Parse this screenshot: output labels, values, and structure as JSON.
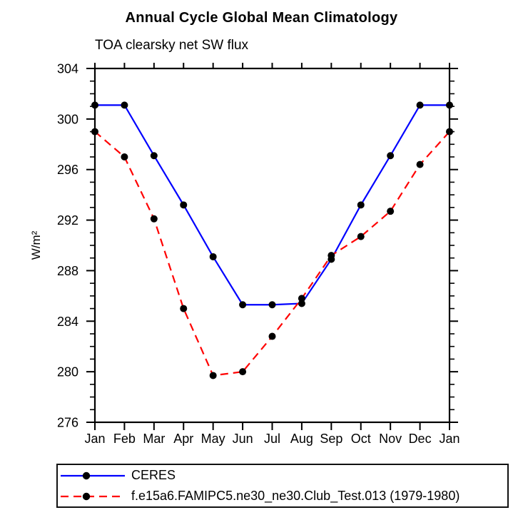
{
  "chart_data": {
    "type": "line",
    "title": "Annual Cycle Global Mean Climatology",
    "subtitle": "TOA clearsky net SW flux",
    "ylabel": "W/m²",
    "categories": [
      "Jan",
      "Feb",
      "Mar",
      "Apr",
      "May",
      "Jun",
      "Jul",
      "Aug",
      "Sep",
      "Oct",
      "Nov",
      "Dec",
      "Jan"
    ],
    "ylim": [
      276,
      304
    ],
    "yticks": [
      276,
      280,
      284,
      288,
      292,
      296,
      300,
      304
    ],
    "ytick_minor_step": 1,
    "grid": false,
    "legend_position": "bottom-left-box",
    "marker_color": "#000000",
    "axis_color": "#000000",
    "series": [
      {
        "name": "CERES",
        "color": "#0000ff",
        "style": "solid",
        "dash": "none",
        "values": [
          301.1,
          301.1,
          297.1,
          293.2,
          289.1,
          285.3,
          285.3,
          285.4,
          288.9,
          293.2,
          297.1,
          301.1,
          301.1
        ]
      },
      {
        "name": "f.e15a6.FAMIPC5.ne30_ne30.Club_Test.013 (1979-1980)",
        "color": "#ff0000",
        "style": "dashed",
        "dash": "11,7",
        "values": [
          299.0,
          297.0,
          292.1,
          285.0,
          279.7,
          280.0,
          282.8,
          285.8,
          289.2,
          290.7,
          292.7,
          296.4,
          299.0
        ]
      }
    ]
  }
}
